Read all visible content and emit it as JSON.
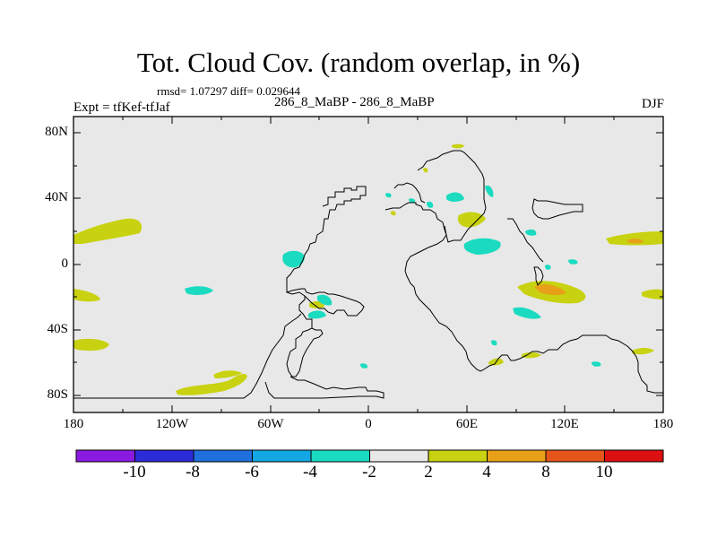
{
  "figure": {
    "title": "Tot. Cloud Cov. (random overlap, in %)",
    "stats": "rmsd= 1.07297 diff= 0.029644",
    "expt_label": "Expt = tfKef-tfJaf",
    "subtitle": "286_8_MaBP - 286_8_MaBP",
    "season": "DJF"
  },
  "axes": {
    "lat_ticks": [
      "80N",
      "40N",
      "0",
      "40S",
      "80S"
    ],
    "lon_ticks": [
      "180",
      "120W",
      "60W",
      "0",
      "60E",
      "120E",
      "180"
    ]
  },
  "colorbar": {
    "labels": [
      "-10",
      "-8",
      "-6",
      "-4",
      "-2",
      "2",
      "4",
      "8",
      "10"
    ],
    "colors": [
      "#8a1ae0",
      "#2b2bd8",
      "#1f6fdc",
      "#13a8e3",
      "#1adbc0",
      "#e8e8e8",
      "#c8d210",
      "#e8a018",
      "#e55418",
      "#dc1010"
    ]
  },
  "map": {
    "background_color": "#e8e8e8",
    "coastline_color": "#000000",
    "lat_range": [
      -90,
      90
    ],
    "lon_range": [
      -180,
      180
    ]
  }
}
